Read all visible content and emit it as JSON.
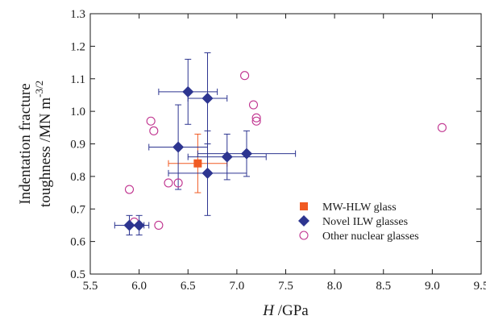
{
  "chart_data": {
    "type": "scatter",
    "xlabel": "H /GPa",
    "ylabel": "Indentation fracture toughness /MN m^-3/2",
    "xlim": [
      5.5,
      9.5
    ],
    "ylim": [
      0.5,
      1.3
    ],
    "x_ticks": [
      "5.5",
      "6.0",
      "6.5",
      "7.0",
      "7.5",
      "8.0",
      "8.5",
      "9.0",
      "9.5"
    ],
    "y_ticks": [
      "0.5",
      "0.6",
      "0.7",
      "0.8",
      "0.9",
      "1.0",
      "1.1",
      "1.2",
      "1.3"
    ],
    "grid": false,
    "legend_position": "bottom-right",
    "series": [
      {
        "name": "MW-HLW glass",
        "marker": "square",
        "color": "#f05a22",
        "points": [
          {
            "x": 6.6,
            "y": 0.84,
            "xerr": 0.3,
            "yerr": 0.09
          }
        ]
      },
      {
        "name": "Novel ILW glasses",
        "marker": "diamond",
        "color": "#2d3590",
        "points": [
          {
            "x": 5.9,
            "y": 0.65,
            "xerr": 0.15,
            "yerr": 0.03
          },
          {
            "x": 6.0,
            "y": 0.65,
            "xerr": 0.1,
            "yerr": 0.03
          },
          {
            "x": 6.4,
            "y": 0.89,
            "xerr": 0.3,
            "yerr": 0.13
          },
          {
            "x": 6.5,
            "y": 1.06,
            "xerr": 0.3,
            "yerr": 0.1
          },
          {
            "x": 6.7,
            "y": 1.04,
            "xerr": 0.2,
            "yerr": 0.14
          },
          {
            "x": 6.7,
            "y": 0.81,
            "xerr": 0.4,
            "yerr": 0.13
          },
          {
            "x": 6.9,
            "y": 0.86,
            "xerr": 0.4,
            "yerr": 0.07
          },
          {
            "x": 7.1,
            "y": 0.87,
            "xerr": 0.5,
            "yerr": 0.07
          }
        ]
      },
      {
        "name": "Other nuclear glasses",
        "marker": "circle-open",
        "color": "#c0338f",
        "points": [
          {
            "x": 5.9,
            "y": 0.76
          },
          {
            "x": 5.95,
            "y": 0.66
          },
          {
            "x": 6.12,
            "y": 0.97
          },
          {
            "x": 6.15,
            "y": 0.94
          },
          {
            "x": 6.2,
            "y": 0.65
          },
          {
            "x": 6.3,
            "y": 0.78
          },
          {
            "x": 6.4,
            "y": 0.78
          },
          {
            "x": 7.08,
            "y": 1.11
          },
          {
            "x": 7.17,
            "y": 1.02
          },
          {
            "x": 7.2,
            "y": 0.98
          },
          {
            "x": 7.2,
            "y": 0.97
          },
          {
            "x": 9.1,
            "y": 0.95
          }
        ]
      }
    ]
  }
}
